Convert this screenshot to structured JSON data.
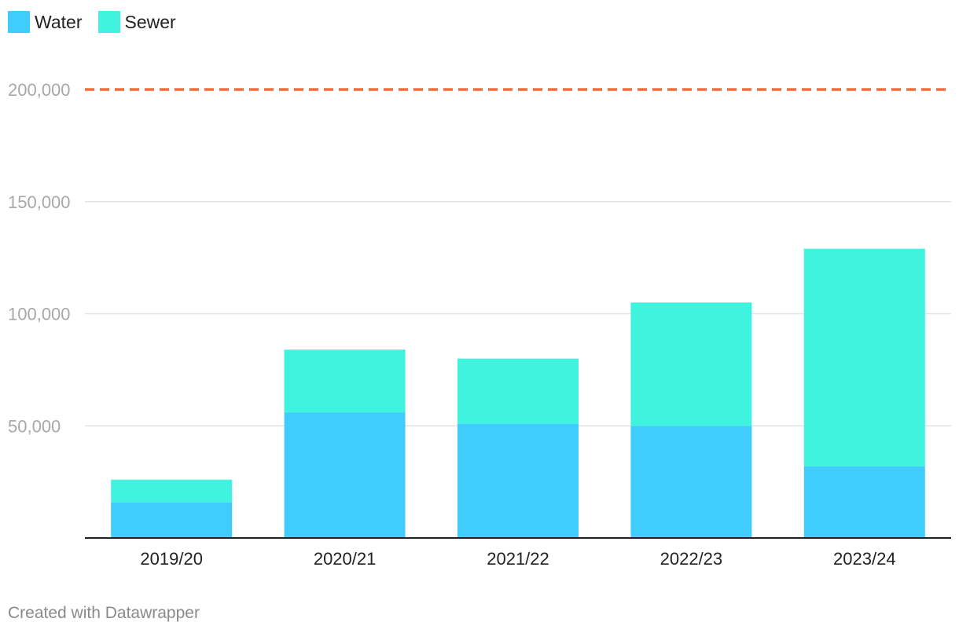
{
  "chart_data": {
    "type": "bar",
    "stacked": true,
    "categories": [
      "2019/20",
      "2020/21",
      "2021/22",
      "2022/23",
      "2023/24"
    ],
    "series": [
      {
        "name": "Water",
        "color": "#40cdfe",
        "values": [
          16000,
          56000,
          51000,
          50000,
          32000
        ]
      },
      {
        "name": "Sewer",
        "color": "#3ff3de",
        "values": [
          10000,
          28000,
          29000,
          55000,
          97000
        ]
      }
    ],
    "ylim": [
      0,
      200000
    ],
    "yticks": [
      "50,000",
      "100,000",
      "150,000",
      "200,000"
    ],
    "ytick_values": [
      50000,
      100000,
      150000,
      200000
    ],
    "reference_line": {
      "value": 200000,
      "color": "#f26b38",
      "style": "dashed"
    },
    "grid": true,
    "legend_position": "top-left"
  },
  "footer": {
    "credit": "Created with Datawrapper"
  }
}
